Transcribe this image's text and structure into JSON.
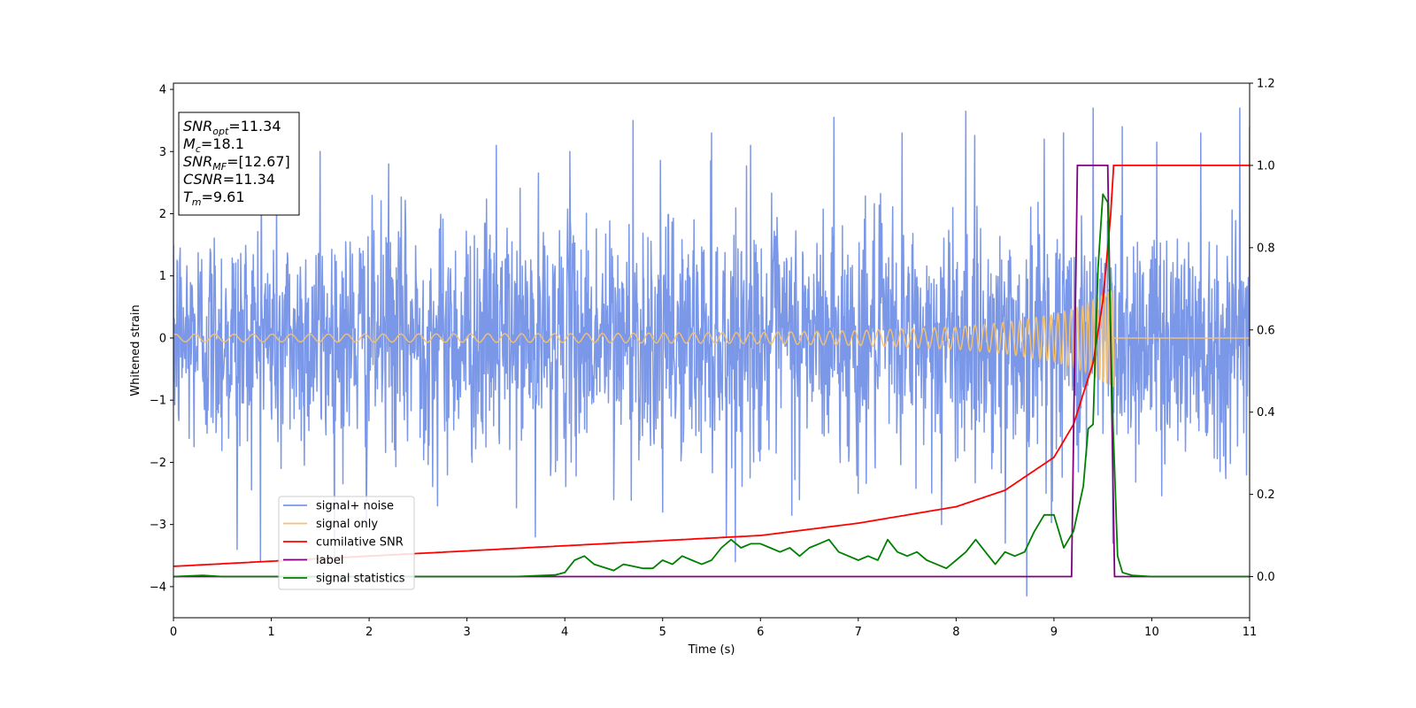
{
  "chart_data": {
    "type": "line",
    "xlabel": "Time (s)",
    "ylabel": "Whitened strain",
    "xlim": [
      0,
      11
    ],
    "ylim": [
      -4.5,
      4.1
    ],
    "y2lim": [
      -0.1,
      1.2
    ],
    "xticks": [
      0,
      1,
      2,
      3,
      4,
      5,
      6,
      7,
      8,
      9,
      10,
      11
    ],
    "yticks": [
      -4,
      -3,
      -2,
      -1,
      0,
      1,
      2,
      3,
      4
    ],
    "y2ticks": [
      0.0,
      0.2,
      0.4,
      0.6,
      0.8,
      1.0,
      1.2
    ],
    "legend_position": "lower-left",
    "annotation": [
      {
        "main": "SNR",
        "sub": "opt",
        "rest": "=11.34"
      },
      {
        "main": "M",
        "sub": "c",
        "rest": "=18.1"
      },
      {
        "main": "SNR",
        "sub": "MF",
        "rest": "=[12.67]"
      },
      {
        "main": "CSNR",
        "sub": "",
        "rest": "=11.34"
      },
      {
        "main": "T",
        "sub": "m",
        "rest": "=9.61"
      }
    ],
    "series": [
      {
        "name": "signal+ noise",
        "axis": "left",
        "color": "#7b97e8",
        "description_values": {
          "mean": 0,
          "std": 0.95,
          "max": 3.7,
          "min": -4.15
        },
        "x": [
          0.0,
          0.65,
          0.9,
          1.1,
          1.5,
          1.97,
          2.2,
          2.7,
          3.3,
          3.7,
          4.05,
          4.5,
          4.7,
          5.0,
          5.5,
          5.65,
          5.9,
          6.4,
          6.75,
          7.0,
          7.45,
          7.85,
          8.1,
          8.5,
          8.72,
          8.9,
          9.1,
          9.4,
          9.6,
          9.7,
          10.05,
          10.5,
          10.9,
          11.0
        ],
        "y": [
          1.5,
          -3.4,
          2.6,
          -2.1,
          3.0,
          -3.0,
          2.8,
          -2.7,
          3.1,
          -3.2,
          3.0,
          -2.6,
          3.5,
          -2.8,
          3.3,
          -3.2,
          3.1,
          -2.6,
          3.55,
          -2.5,
          3.3,
          -3.0,
          3.65,
          -3.3,
          -4.15,
          3.2,
          3.3,
          3.7,
          -3.3,
          3.4,
          3.15,
          3.3,
          3.7,
          3.4
        ]
      },
      {
        "name": "signal only",
        "axis": "left",
        "color": "#f5c16e",
        "envelope_t": [
          0,
          4,
          6,
          7,
          8,
          8.5,
          9,
          9.3,
          9.5,
          9.61
        ],
        "envelope_a": [
          0.06,
          0.07,
          0.09,
          0.12,
          0.18,
          0.25,
          0.38,
          0.52,
          0.7,
          0.8
        ],
        "merger_time": 9.61
      },
      {
        "name": "cumilative SNR",
        "axis": "right",
        "color": "#ff0000",
        "x": [
          0,
          2,
          4,
          6,
          7,
          8,
          8.5,
          9.0,
          9.2,
          9.4,
          9.5,
          9.58,
          9.61,
          11
        ],
        "y": [
          0.025,
          0.05,
          0.075,
          0.1,
          0.13,
          0.17,
          0.21,
          0.29,
          0.37,
          0.52,
          0.67,
          0.88,
          1.0,
          1.0
        ]
      },
      {
        "name": "label",
        "axis": "right",
        "color": "#800080",
        "x": [
          0,
          9.18,
          9.24,
          9.55,
          9.62,
          11
        ],
        "y": [
          0,
          0,
          1.0,
          1.0,
          0,
          0
        ]
      },
      {
        "name": "signal statistics",
        "axis": "right",
        "color": "#008000",
        "x": [
          0,
          0.3,
          0.5,
          1.0,
          2.0,
          3.0,
          3.5,
          3.9,
          4.0,
          4.1,
          4.2,
          4.3,
          4.5,
          4.6,
          4.7,
          4.8,
          4.9,
          5.0,
          5.1,
          5.2,
          5.3,
          5.4,
          5.5,
          5.6,
          5.7,
          5.8,
          5.9,
          6.0,
          6.1,
          6.2,
          6.3,
          6.4,
          6.5,
          6.6,
          6.7,
          6.8,
          6.9,
          7.0,
          7.1,
          7.2,
          7.3,
          7.4,
          7.5,
          7.6,
          7.7,
          7.8,
          7.9,
          8.0,
          8.1,
          8.2,
          8.3,
          8.4,
          8.5,
          8.6,
          8.7,
          8.8,
          8.9,
          9.0,
          9.1,
          9.15,
          9.2,
          9.3,
          9.35,
          9.4,
          9.45,
          9.5,
          9.55,
          9.6,
          9.65,
          9.7,
          9.8,
          10.0,
          11.0
        ],
        "y": [
          0.0,
          0.003,
          0.0,
          0.0,
          0.0,
          0.0,
          0.0,
          0.004,
          0.01,
          0.04,
          0.05,
          0.03,
          0.015,
          0.03,
          0.025,
          0.02,
          0.02,
          0.04,
          0.03,
          0.05,
          0.04,
          0.03,
          0.04,
          0.07,
          0.09,
          0.07,
          0.08,
          0.08,
          0.07,
          0.06,
          0.07,
          0.05,
          0.07,
          0.08,
          0.09,
          0.06,
          0.05,
          0.04,
          0.05,
          0.04,
          0.09,
          0.06,
          0.05,
          0.06,
          0.04,
          0.03,
          0.02,
          0.04,
          0.06,
          0.09,
          0.06,
          0.03,
          0.06,
          0.05,
          0.06,
          0.11,
          0.15,
          0.15,
          0.07,
          0.09,
          0.11,
          0.22,
          0.36,
          0.37,
          0.75,
          0.93,
          0.91,
          0.4,
          0.05,
          0.01,
          0.003,
          0.0,
          0.0
        ]
      }
    ]
  }
}
